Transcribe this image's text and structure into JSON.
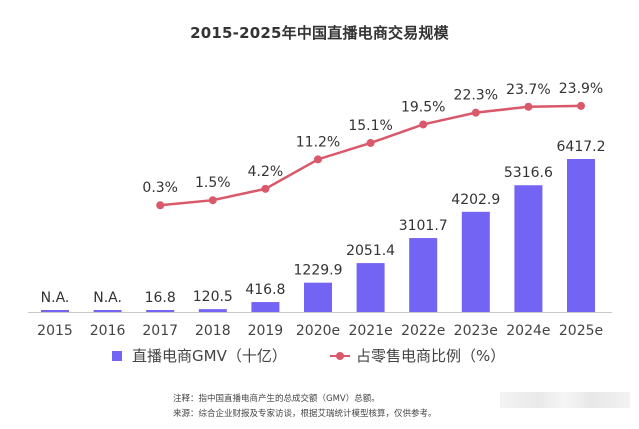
{
  "chart_data": {
    "type": "bar+line",
    "title": "2015-2025年中国直播电商交易规模",
    "categories": [
      "2015",
      "2016",
      "2017",
      "2018",
      "2019",
      "2020e",
      "2021e",
      "2022e",
      "2023e",
      "2024e",
      "2025e"
    ],
    "series": [
      {
        "name": "直播电商GMV（十亿）",
        "type": "bar",
        "color": "#7464f4",
        "values": [
          null,
          null,
          16.8,
          120.5,
          416.8,
          1229.9,
          2051.4,
          3101.7,
          4202.9,
          5316.6,
          6417.2
        ],
        "labels": [
          "N.A.",
          "N.A.",
          "16.8",
          "120.5",
          "416.8",
          "1229.9",
          "2051.4",
          "3101.7",
          "4202.9",
          "5316.6",
          "6417.2"
        ]
      },
      {
        "name": "占零售电商比例（%）",
        "type": "line",
        "color": "#d9586a",
        "values": [
          null,
          null,
          0.3,
          1.5,
          4.2,
          11.2,
          15.1,
          19.5,
          22.3,
          23.7,
          23.9
        ],
        "labels": [
          "",
          "",
          "0.3%",
          "1.5%",
          "4.2%",
          "11.2%",
          "15.1%",
          "19.5%",
          "22.3%",
          "23.7%",
          "23.9%"
        ]
      }
    ],
    "xlabel": "",
    "ylabel": "",
    "grid": false,
    "legend_position": "bottom"
  },
  "footer": {
    "note": "注释：指中国直播电商产生的总成交额（GMV）总额。",
    "source": "来源：综合企业财报及专家访谈，根据艾瑞统计模型核算，仅供参考。"
  }
}
